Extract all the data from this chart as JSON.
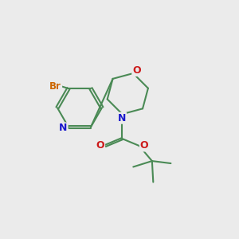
{
  "bg_color": "#ebebeb",
  "bond_color": "#4a8a55",
  "N_color": "#1a1acc",
  "O_color": "#cc1a1a",
  "Br_color": "#cc6600",
  "line_width": 1.5,
  "dbo": 0.055,
  "figsize": [
    3.0,
    3.0
  ],
  "dpi": 100,
  "xlim": [
    0,
    10
  ],
  "ylim": [
    0,
    10
  ]
}
